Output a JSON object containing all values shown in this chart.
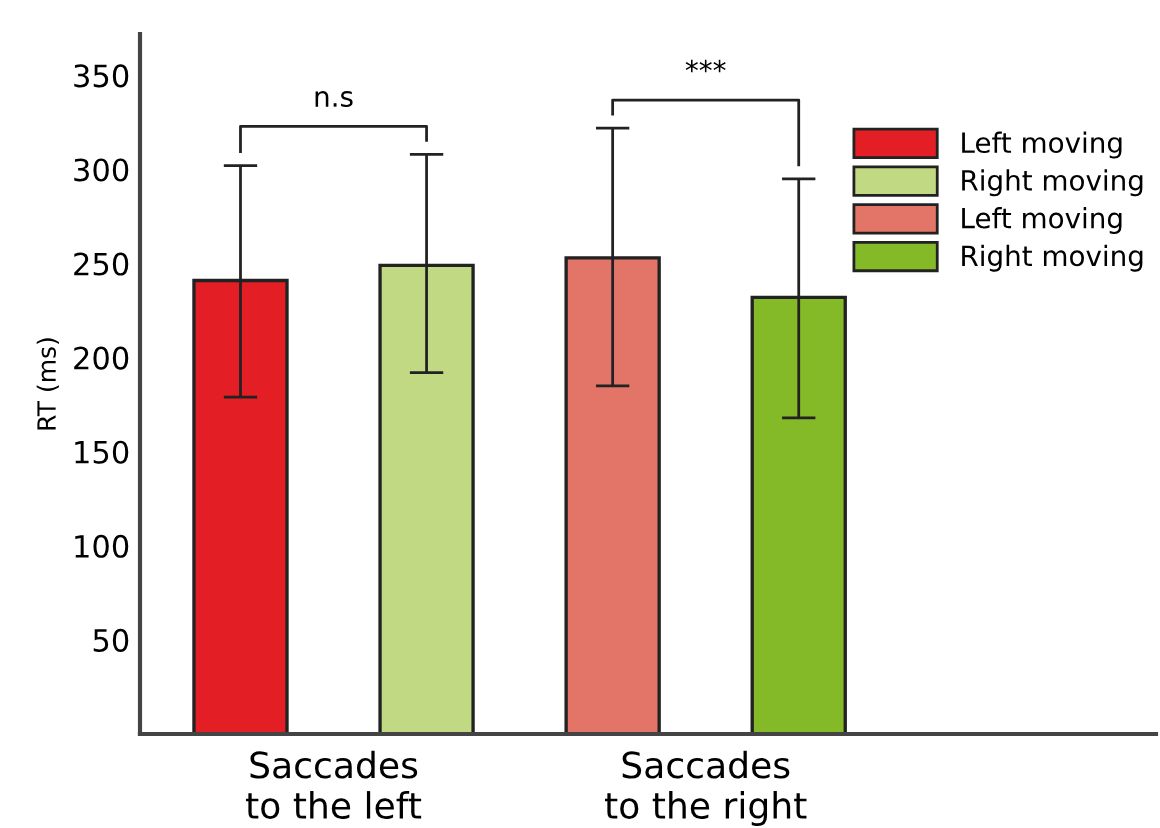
{
  "chart_data": {
    "type": "bar",
    "ylabel": "RT (ms)",
    "categories": [
      "Saccades\nto the left",
      "Saccades\nto the right"
    ],
    "series": [
      {
        "name": "Left moving",
        "color": "#e31e24",
        "values": [
          241,
          null
        ],
        "errors": [
          [
            179,
            302
          ],
          null
        ]
      },
      {
        "name": "Right moving",
        "color": "#c1d982",
        "values": [
          249,
          null
        ],
        "errors": [
          [
            192,
            308
          ],
          null
        ]
      },
      {
        "name": "Left moving",
        "color": "#e37468",
        "values": [
          null,
          253
        ],
        "errors": [
          null,
          [
            185,
            322
          ]
        ]
      },
      {
        "name": "Right moving",
        "color": "#84ba28",
        "values": [
          null,
          232
        ],
        "errors": [
          null,
          [
            168,
            295
          ]
        ]
      }
    ],
    "ylim": [
      0,
      372
    ],
    "yticks": [
      50,
      100,
      150,
      200,
      250,
      300,
      350
    ],
    "annotations": [
      "n.s",
      "***"
    ],
    "legend": "top right",
    "grid": false
  }
}
